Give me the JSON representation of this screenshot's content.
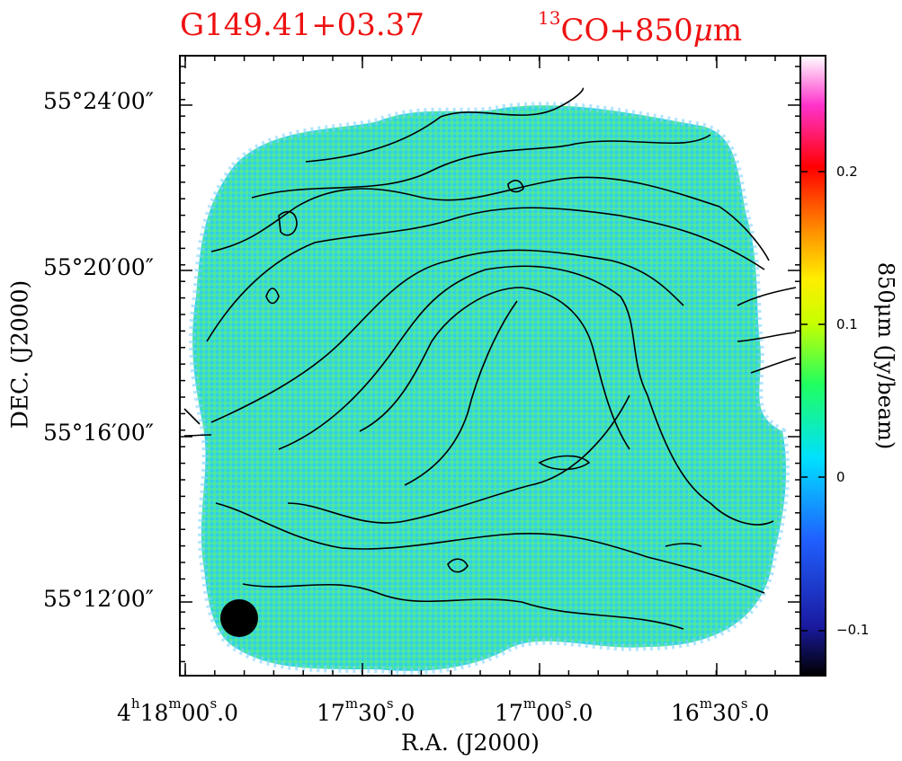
{
  "title": {
    "source_name": "G149.41+03.37",
    "tracer_prefix": "13",
    "tracer_main": "CO+850",
    "tracer_mu": "μ",
    "tracer_unit": "m"
  },
  "axes": {
    "xlabel": "R.A.  (J2000)",
    "ylabel": "DEC.  (J2000)",
    "y_ticks": [
      "55°24′00″",
      "55°20′00″",
      "55°16′00″",
      "55°12′00″"
    ],
    "x_ticks": [
      {
        "h": "4",
        "hs": "h",
        "m": "18",
        "ms": "m",
        "s": "00",
        "ss": "s",
        "frac": ".0"
      },
      {
        "m": "17",
        "ms": "m",
        "s": "30",
        "ss": "s",
        "frac": ".0"
      },
      {
        "m": "17",
        "ms": "m",
        "s": "00",
        "ss": "s",
        "frac": ".0"
      },
      {
        "m": "16",
        "ms": "m",
        "s": "30",
        "ss": "s",
        "frac": ".0"
      }
    ]
  },
  "colorbar": {
    "label": "850μm  (Jy/beam)",
    "ticks": [
      "0.2",
      "0.1",
      "0",
      "−0.1"
    ],
    "range": [
      -0.13,
      0.28
    ],
    "colors": [
      "#000000",
      "#1a1aa0",
      "#2060ff",
      "#00e0ff",
      "#20ff60",
      "#c8ff00",
      "#ffee00",
      "#ff8c00",
      "#ff0000",
      "#ff33cc",
      "#ffffff"
    ]
  },
  "image": {
    "map_color": "#3ee0c8",
    "contour_color": "#000000",
    "beam_color": "#000000"
  }
}
